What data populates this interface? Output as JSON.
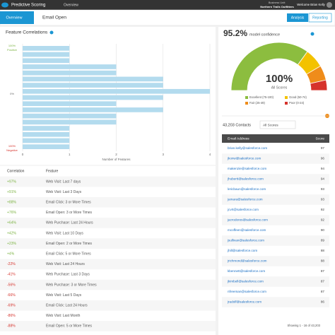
{
  "header": {
    "app": "Predictive Scoring",
    "nav": "Overview",
    "unit_label": "Business Unit:",
    "unit": "Northern Trails Outfitters",
    "welcome": "Welcome Brian Kelly"
  },
  "tabs": {
    "back": "Overview",
    "current": "Email Open",
    "buttons": [
      "Analysis",
      "Reporting"
    ]
  },
  "features": {
    "title": "Feature Correlations",
    "top_label": [
      "100%",
      "Positive"
    ],
    "mid_label": "0%",
    "bottom_label": [
      "100%",
      "Negative"
    ],
    "table": {
      "columns": [
        "Correlation",
        "Feature"
      ],
      "rows": [
        [
          "+97%",
          "Web Visit: Last 7 days"
        ],
        [
          "+91%",
          "Web Visit: Last 3 Days"
        ],
        [
          "+88%",
          "Email Click: 3 or More Times"
        ],
        [
          "+76%",
          "Email Open: 3 or More Times"
        ],
        [
          "+64%",
          "Web Purchase: Last 24 Hours"
        ],
        [
          "+42%",
          "Web Visit: Last 10 Days"
        ],
        [
          "+23%",
          "Email Open: 2 or More Times"
        ],
        [
          "+4%",
          "Email Click: 5 or More Times"
        ],
        [
          "-22%",
          "Web Visit: Last 24 Hours"
        ],
        [
          "-41%",
          "Web Purchase: Last 3 Days"
        ],
        [
          "-56%",
          "Web Purchase: 3 or More Times"
        ],
        [
          "-66%",
          "Web Visit: Last 5 Days"
        ],
        [
          "-69%",
          "Email Click: Last 24 Hours"
        ],
        [
          "-86%",
          "Web Visit: Last Month"
        ],
        [
          "-88%",
          "Email Open: 5 or More Times"
        ]
      ]
    }
  },
  "confidence": {
    "value": "95.2%",
    "label": "model confidence"
  },
  "chart_data": [
    {
      "type": "barh",
      "x_label": "Number of Features",
      "color": "#b3dbee",
      "categories": [
        null,
        null,
        null,
        null,
        null,
        null,
        null,
        null,
        null,
        null,
        null,
        null,
        null,
        null,
        null,
        null,
        null
      ],
      "values": [
        1,
        1,
        1,
        2,
        2,
        3,
        3,
        4,
        3,
        2,
        3,
        2,
        2,
        1,
        1,
        1,
        1
      ],
      "xlim": [
        0,
        4
      ],
      "xticks": [
        0,
        1,
        2,
        3,
        4
      ],
      "grid": true
    },
    {
      "type": "gauge",
      "center_value": "100%",
      "center_label": "All Scores",
      "categories": [
        "Excellent (75-100)",
        "Good (50-74)",
        "Fair (25-49)",
        "Poor (0-24)"
      ],
      "colors": [
        "#8cbd3f",
        "#f3c200",
        "#ef8c1a",
        "#d6332c"
      ],
      "values": [
        70,
        13,
        10,
        7
      ]
    }
  ],
  "contacts": {
    "count": "43,203 Contacts",
    "filter": "All Scores",
    "columns": [
      "Email Address",
      "Score"
    ],
    "rows": [
      [
        "brian.kelly@salesforce.com",
        97
      ],
      [
        "jkonw@salesforce.com",
        96
      ],
      [
        "makenzie@salesforce.com",
        94
      ],
      [
        "jhubertt@salesforce.com",
        94
      ],
      [
        "lericbaun@salesforce.com",
        93
      ],
      [
        "jamara@salesforce.com",
        93
      ],
      [
        "jcvrt@salesforce.com",
        92
      ],
      [
        "jacrodores@salesforce.com",
        92
      ],
      [
        "mcoffeen@salesforce.com",
        90
      ],
      [
        "jsullivan@salesforce.com",
        89
      ],
      [
        "jhill@salesforce.com",
        88
      ],
      [
        "jrichmond@salesforce.com",
        88
      ],
      [
        "kbennett@salesforce.com",
        87
      ],
      [
        "jkimbell@salesforce.com",
        87
      ],
      [
        "nfreeman@salesforce.com",
        87
      ],
      [
        "jradolf@salesforce.com",
        86
      ]
    ],
    "footer": "Showing 1 - 16 of 43,203"
  }
}
